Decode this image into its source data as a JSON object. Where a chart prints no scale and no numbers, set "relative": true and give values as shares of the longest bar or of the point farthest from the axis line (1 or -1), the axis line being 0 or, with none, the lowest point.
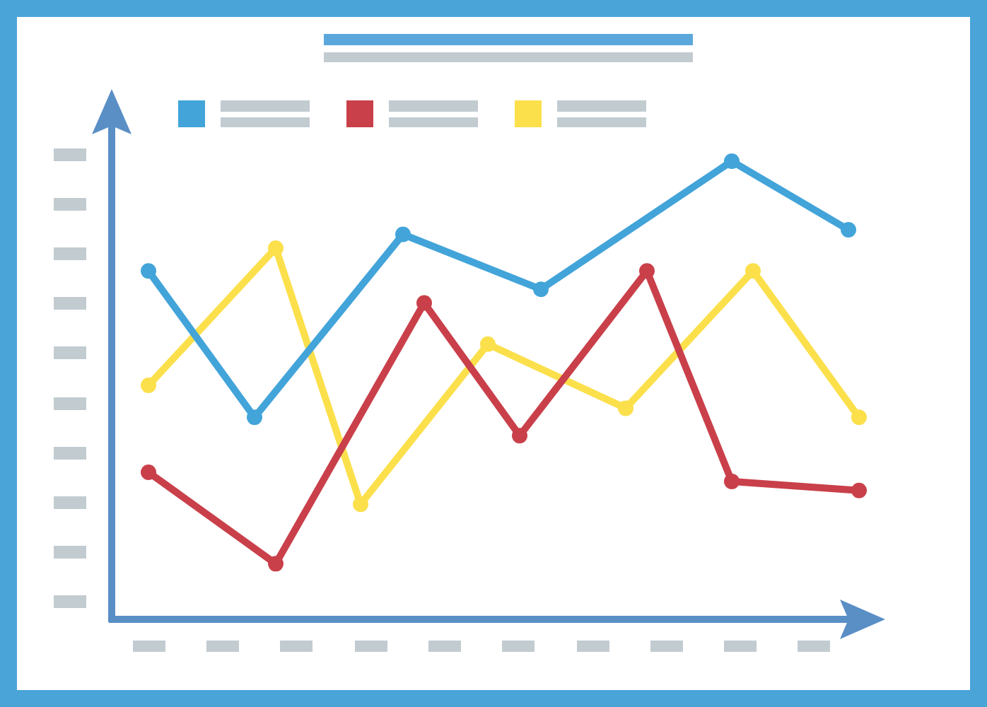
{
  "chart_data": {
    "type": "line",
    "relative": true,
    "marker": "circle",
    "line_style": "solid",
    "categories": [
      null,
      null,
      null,
      null,
      null,
      null,
      null,
      null,
      null,
      null,
      null,
      null,
      null,
      null,
      null,
      null,
      null,
      null,
      null,
      null,
      null,
      null,
      null,
      null,
      null,
      null,
      null,
      null,
      null,
      null,
      null,
      null,
      null,
      null,
      null,
      null,
      null,
      null,
      null,
      null,
      null,
      null,
      null,
      null,
      null,
      null,
      null,
      null,
      null,
      null,
      null,
      null,
      null,
      null,
      null,
      null,
      null,
      null,
      null,
      null,
      null,
      null,
      null,
      null,
      null,
      null,
      null,
      null
    ],
    "series": [
      {
        "color": "#42a4d9",
        "values": [
          0.76,
          null,
          null,
          null,
          null,
          null,
          null,
          null,
          null,
          null,
          0.44,
          null,
          null,
          null,
          null,
          null,
          null,
          null,
          null,
          null,
          null,
          null,
          null,
          null,
          0.84,
          null,
          null,
          null,
          null,
          null,
          null,
          null,
          null,
          null,
          null,
          null,
          null,
          0.72,
          null,
          null,
          null,
          null,
          null,
          null,
          null,
          null,
          null,
          null,
          null,
          null,
          null,
          null,
          null,
          null,
          null,
          1,
          null,
          null,
          null,
          null,
          null,
          null,
          null,
          null,
          null,
          null,
          0.85,
          null
        ]
      },
      {
        "color": "#c9404a",
        "values": [
          0.32,
          null,
          null,
          null,
          null,
          null,
          null,
          null,
          null,
          null,
          null,
          null,
          0.12,
          null,
          null,
          null,
          null,
          null,
          null,
          null,
          null,
          null,
          null,
          null,
          null,
          null,
          0.69,
          null,
          null,
          null,
          null,
          null,
          null,
          null,
          null,
          0.4,
          null,
          null,
          null,
          null,
          null,
          null,
          null,
          null,
          null,
          null,
          null,
          0.76,
          null,
          null,
          null,
          null,
          null,
          null,
          null,
          0.3,
          null,
          null,
          null,
          null,
          null,
          null,
          null,
          null,
          null,
          null,
          null,
          0.28
        ]
      },
      {
        "color": "#fbe04c",
        "values": [
          0.51,
          null,
          null,
          null,
          null,
          null,
          null,
          null,
          null,
          null,
          null,
          null,
          0.81,
          null,
          null,
          null,
          null,
          null,
          null,
          null,
          0.25,
          null,
          null,
          null,
          null,
          null,
          null,
          null,
          null,
          null,
          null,
          null,
          0.6,
          null,
          null,
          null,
          null,
          null,
          null,
          null,
          null,
          null,
          null,
          null,
          null,
          0.46,
          null,
          null,
          null,
          null,
          null,
          null,
          null,
          null,
          null,
          null,
          null,
          0.76,
          null,
          null,
          null,
          null,
          null,
          null,
          null,
          null,
          null,
          0.44
        ]
      }
    ]
  }
}
